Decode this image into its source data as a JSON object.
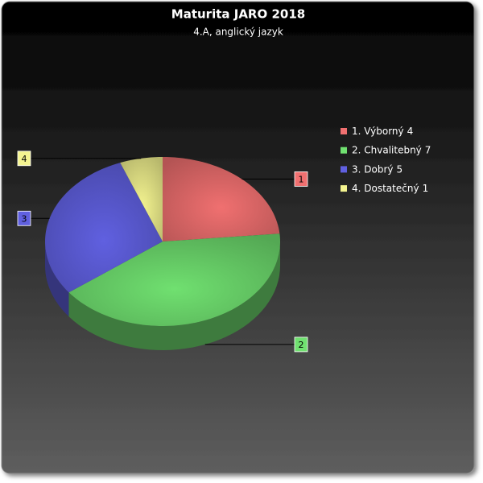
{
  "chart_data": {
    "type": "pie3d",
    "title": "Maturita JARO 2018",
    "subtitle": "4.A, anglický jazyk",
    "categories": [
      "1. Výborný",
      "2. Chvalitebný",
      "3. Dobrý",
      "4. Dostatečný"
    ],
    "values": [
      4,
      7,
      5,
      1
    ],
    "slice_labels": [
      "1",
      "2",
      "3",
      "4"
    ],
    "colors": [
      "#f07070",
      "#70e070",
      "#6060e0",
      "#f4f490"
    ],
    "legend": "right"
  }
}
